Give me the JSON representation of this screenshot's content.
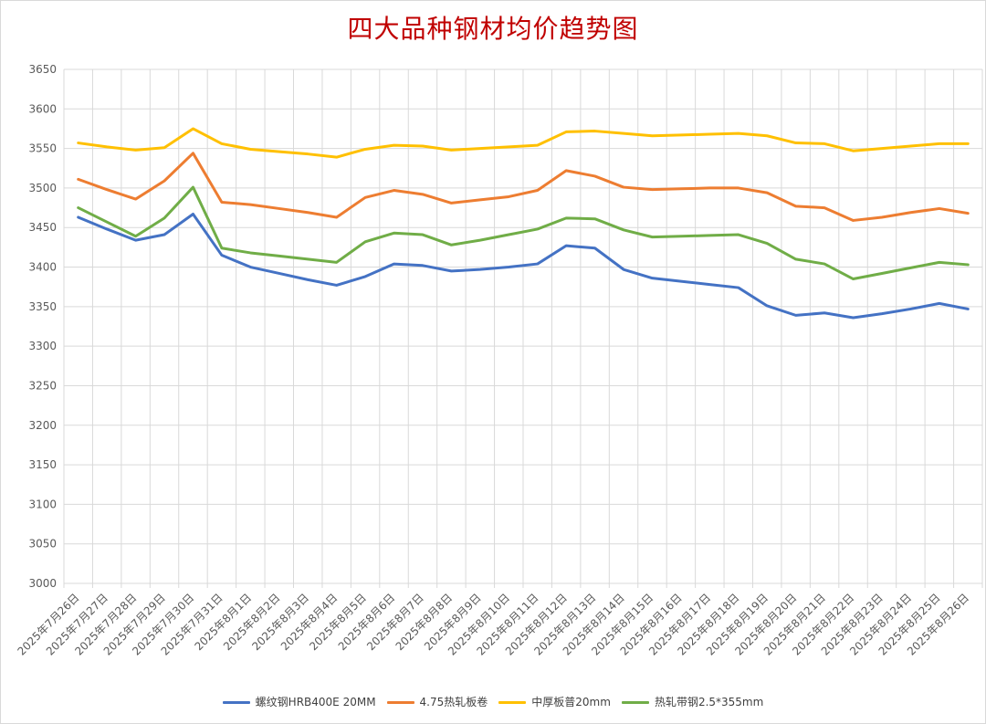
{
  "chart_data": {
    "type": "line",
    "title": "四大品种钢材均价趋势图",
    "categories": [
      "2025年7月26日",
      "2025年7月27日",
      "2025年7月28日",
      "2025年7月29日",
      "2025年7月30日",
      "2025年7月31日",
      "2025年8月1日",
      "2025年8月2日",
      "2025年8月3日",
      "2025年8月4日",
      "2025年8月5日",
      "2025年8月6日",
      "2025年8月7日",
      "2025年8月8日",
      "2025年8月9日",
      "2025年8月10日",
      "2025年8月11日",
      "2025年8月12日",
      "2025年8月13日",
      "2025年8月14日",
      "2025年8月15日",
      "2025年8月16日",
      "2025年8月17日",
      "2025年8月18日",
      "2025年8月19日",
      "2025年8月20日",
      "2025年8月21日",
      "2025年8月22日",
      "2025年8月23日",
      "2025年8月24日",
      "2025年8月25日",
      "2025年8月26日"
    ],
    "ylim": [
      3000,
      3650
    ],
    "yticks": [
      3000,
      3050,
      3100,
      3150,
      3200,
      3250,
      3300,
      3350,
      3400,
      3450,
      3500,
      3550,
      3600,
      3650
    ],
    "grid": true,
    "legend_position": "bottom",
    "series": [
      {
        "name": "螺纹钢HRB400E 20MM",
        "color": "#4472c4",
        "values": [
          3463,
          3448,
          3434,
          3441,
          3467,
          3415,
          3400,
          3392,
          3384,
          3377,
          3388,
          3404,
          3402,
          3395,
          3397,
          3400,
          3404,
          3427,
          3424,
          3397,
          3386,
          3382,
          3378,
          3374,
          3351,
          3339,
          3342,
          3336,
          3341,
          3347,
          3354,
          3347
        ]
      },
      {
        "name": "4.75热轧板卷",
        "color": "#ed7d31",
        "values": [
          3511,
          3498,
          3486,
          3509,
          3544,
          3482,
          3479,
          3474,
          3469,
          3463,
          3488,
          3497,
          3492,
          3481,
          3485,
          3489,
          3497,
          3522,
          3515,
          3501,
          3498,
          3499,
          3500,
          3500,
          3494,
          3477,
          3475,
          3459,
          3463,
          3469,
          3474,
          3468
        ]
      },
      {
        "name": "中厚板普20mm",
        "color": "#ffc000",
        "values": [
          3557,
          3552,
          3548,
          3551,
          3575,
          3556,
          3549,
          3546,
          3543,
          3539,
          3549,
          3554,
          3553,
          3548,
          3550,
          3552,
          3554,
          3571,
          3572,
          3569,
          3566,
          3567,
          3568,
          3569,
          3566,
          3557,
          3556,
          3547,
          3550,
          3553,
          3556,
          3556
        ]
      },
      {
        "name": "热轧带钢2.5*355mm",
        "color": "#70ad47",
        "values": [
          3475,
          3457,
          3439,
          3462,
          3501,
          3424,
          3418,
          3414,
          3410,
          3406,
          3432,
          3443,
          3441,
          3428,
          3434,
          3441,
          3448,
          3462,
          3461,
          3447,
          3438,
          3439,
          3440,
          3441,
          3430,
          3410,
          3404,
          3385,
          3392,
          3399,
          3406,
          3403
        ]
      }
    ]
  }
}
